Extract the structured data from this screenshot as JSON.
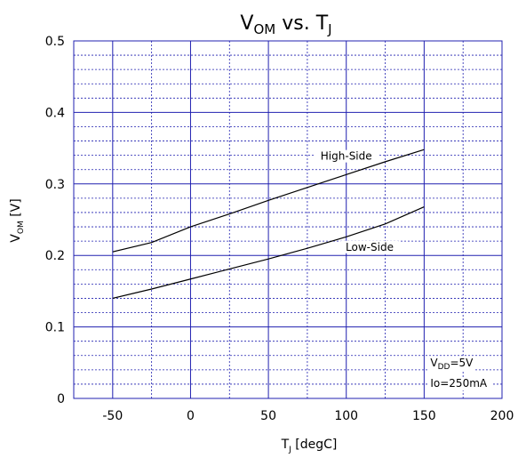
{
  "chart_data": {
    "type": "line",
    "title": {
      "v_main": "V",
      "v_sub": "OM",
      "middle": " vs. ",
      "t_main": "T",
      "t_sub": "J"
    },
    "xlabel": {
      "main": "T",
      "sub": "J",
      "rest": " [degC]"
    },
    "ylabel": {
      "main": "V",
      "sub": "OM",
      "rest": " [V]"
    },
    "xlim": [
      -75,
      200
    ],
    "ylim": [
      0,
      0.5
    ],
    "x_major_ticks": [
      -50,
      0,
      50,
      100,
      150,
      200
    ],
    "x_tick_labels": [
      "-50",
      "0",
      "50",
      "100",
      "150",
      "200"
    ],
    "x_minor_ticks": [
      -25,
      25,
      75,
      125,
      175
    ],
    "y_major_ticks": [
      0,
      0.1,
      0.2,
      0.3,
      0.4,
      0.5
    ],
    "y_tick_labels": [
      "0",
      "0.1",
      "0.2",
      "0.3",
      "0.4",
      "0.5"
    ],
    "y_minor_step": 0.02,
    "grid": true,
    "colors": {
      "major_grid": "#2020b0",
      "minor_grid": "#2020b0",
      "frame": "#2020b0",
      "series": "#000000"
    },
    "series": [
      {
        "name": "High-Side",
        "x": [
          -50,
          -25,
          0,
          25,
          50,
          75,
          100,
          125,
          150
        ],
        "y": [
          0.205,
          0.218,
          0.24,
          0.258,
          0.277,
          0.295,
          0.313,
          0.331,
          0.348
        ]
      },
      {
        "name": "Low-Side",
        "x": [
          -50,
          -25,
          0,
          25,
          50,
          75,
          100,
          125,
          150
        ],
        "y": [
          0.14,
          0.153,
          0.167,
          0.181,
          0.195,
          0.21,
          0.226,
          0.244,
          0.268
        ]
      }
    ],
    "annotation": {
      "v_main": "V",
      "v_sub": "DD",
      "v_rest": "=5V",
      "io_line": "Io=250mA"
    }
  }
}
